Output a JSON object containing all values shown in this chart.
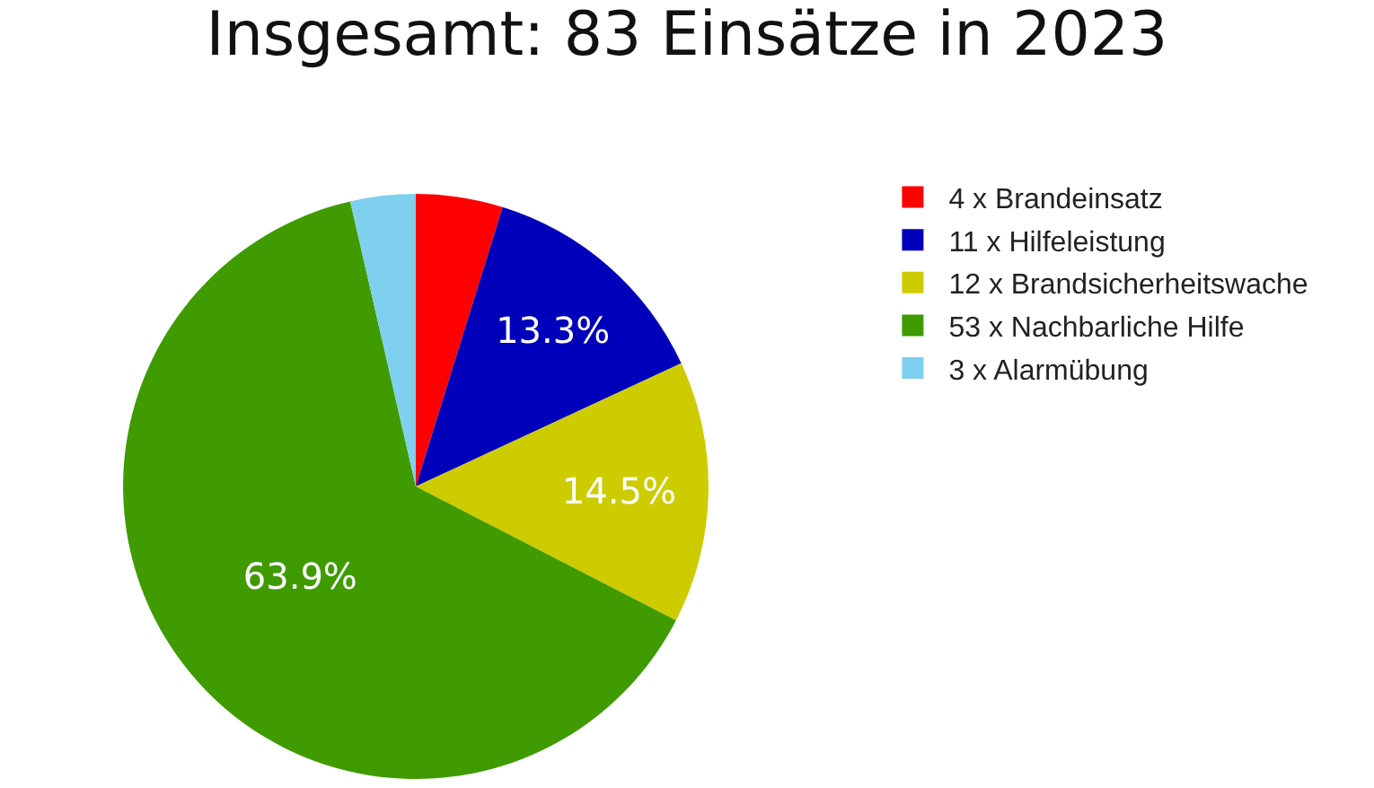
{
  "chart_data": {
    "type": "pie",
    "title": "Insgesamt: 83 Einsätze in 2023",
    "categories": [
      "4 x Brandeinsatz",
      "11 x Hilfeleistung",
      "12 x Brandsicherheitswache",
      "53 x Nachbarliche Hilfe",
      "3 x Alarmübung"
    ],
    "values": [
      4.8,
      13.3,
      14.5,
      63.9,
      3.6
    ],
    "colors": [
      "#ff0000",
      "#0000bb",
      "#cccc00",
      "#3f9b00",
      "#7fd0ee"
    ],
    "value_labels": [
      null,
      "13.3%",
      "14.5%",
      "63.9%",
      null
    ],
    "legend": "top right"
  }
}
